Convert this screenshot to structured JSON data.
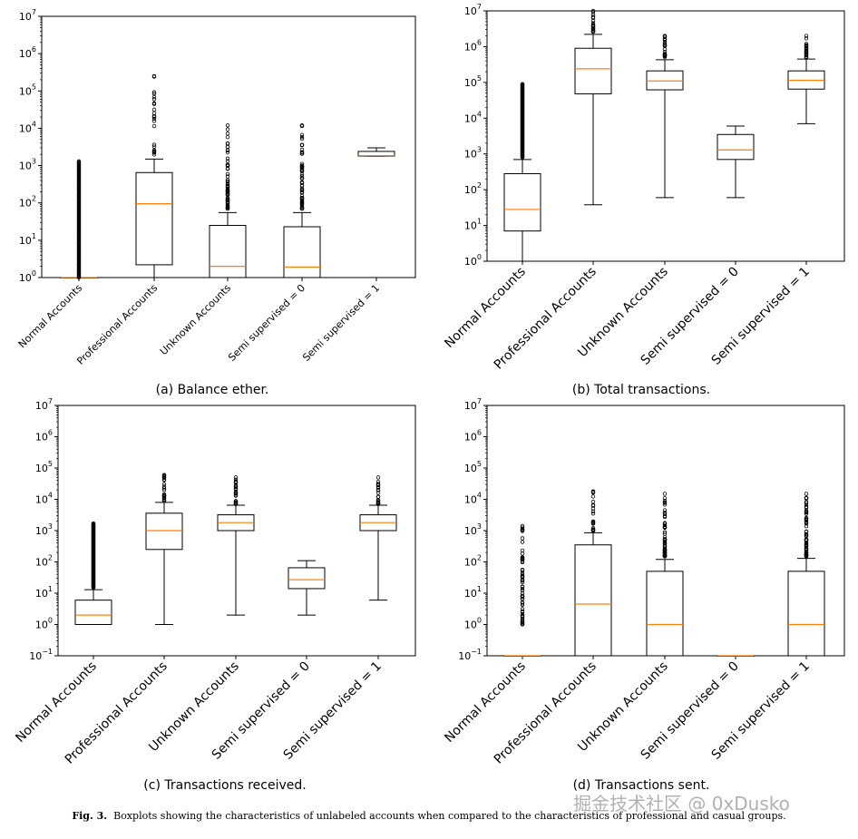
{
  "figure": {
    "caption_label": "Fig. 3.",
    "caption_text": "Boxplots showing the characteristics of unlabeled accounts when compared to the characteristics of professional and casual groups.",
    "watermark": "掘金技术社区 @ 0xDusko"
  },
  "colors": {
    "box": "#000000",
    "median": "#ff7f0e",
    "flier": "#000000",
    "background": "#ffffff"
  },
  "chart_data": [
    {
      "type": "boxplot",
      "panel": "a",
      "subcaption": "(a) Balance ether.",
      "yscale": "log",
      "ylim": [
        1,
        10000000
      ],
      "ytick_labels": [
        {
          "base": "10",
          "exp": "0"
        },
        {
          "base": "10",
          "exp": "1"
        },
        {
          "base": "10",
          "exp": "2"
        },
        {
          "base": "10",
          "exp": "3"
        },
        {
          "base": "10",
          "exp": "4"
        },
        {
          "base": "10",
          "exp": "5"
        },
        {
          "base": "10",
          "exp": "6"
        },
        {
          "base": "10",
          "exp": "7"
        }
      ],
      "categories": [
        "Normal Accounts",
        "Professional Accounts",
        "Unknown Accounts",
        "Semi supervised = 0",
        "Semi supervised = 1"
      ],
      "boxes": [
        {
          "q1": 1,
          "median": 1,
          "q3": 1,
          "whisker_low": 1,
          "whisker_high": 1,
          "flier_range": [
            1,
            1300
          ],
          "flier_style": "dense"
        },
        {
          "q1": 2.2,
          "median": 95,
          "q3": 650,
          "whisker_low": 1,
          "whisker_high": 1500,
          "flier_range": [
            1800,
            250000
          ],
          "flier_style": "sparse"
        },
        {
          "q1": 1,
          "median": 2,
          "q3": 25,
          "whisker_low": 1,
          "whisker_high": 55,
          "flier_range": [
            70,
            12000
          ],
          "flier_style": "medium"
        },
        {
          "q1": 1,
          "median": 1.9,
          "q3": 23,
          "whisker_low": 1,
          "whisker_high": 55,
          "flier_range": [
            70,
            12000
          ],
          "flier_style": "medium"
        },
        {
          "q1": 1800,
          "median": 1850,
          "q3": 2400,
          "whisker_low": 1800,
          "whisker_high": 3000,
          "flier_range": null,
          "flier_style": "none"
        }
      ]
    },
    {
      "type": "boxplot",
      "panel": "b",
      "subcaption": "(b) Total transactions.",
      "yscale": "log",
      "ylim": [
        1,
        10000000
      ],
      "ytick_labels": [
        {
          "base": "10",
          "exp": "0"
        },
        {
          "base": "10",
          "exp": "1"
        },
        {
          "base": "10",
          "exp": "2"
        },
        {
          "base": "10",
          "exp": "3"
        },
        {
          "base": "10",
          "exp": "4"
        },
        {
          "base": "10",
          "exp": "5"
        },
        {
          "base": "10",
          "exp": "6"
        },
        {
          "base": "10",
          "exp": "7"
        }
      ],
      "categories": [
        "Normal Accounts",
        "Professional Accounts",
        "Unknown Accounts",
        "Semi supervised = 0",
        "Semi supervised = 1"
      ],
      "boxes": [
        {
          "q1": 7,
          "median": 28,
          "q3": 280,
          "whisker_low": 1,
          "whisker_high": 700,
          "flier_range": [
            800,
            90000
          ],
          "flier_style": "dense"
        },
        {
          "q1": 48000,
          "median": 240000,
          "q3": 900000,
          "whisker_low": 38,
          "whisker_high": 2200000,
          "flier_range": [
            2600000,
            10000000
          ],
          "flier_style": "sparse"
        },
        {
          "q1": 62000,
          "median": 110000,
          "q3": 210000,
          "whisker_low": 60,
          "whisker_high": 430000,
          "flier_range": [
            500000,
            2000000
          ],
          "flier_style": "sparse"
        },
        {
          "q1": 700,
          "median": 1300,
          "q3": 3500,
          "whisker_low": 60,
          "whisker_high": 6000,
          "flier_range": null,
          "flier_style": "none"
        },
        {
          "q1": 65000,
          "median": 115000,
          "q3": 210000,
          "whisker_low": 7000,
          "whisker_high": 450000,
          "flier_range": [
            500000,
            2000000
          ],
          "flier_style": "sparse"
        }
      ]
    },
    {
      "type": "boxplot",
      "panel": "c",
      "subcaption": "(c) Transactions received.",
      "yscale": "log",
      "ylim": [
        0.1,
        10000000
      ],
      "ytick_labels": [
        {
          "base": "10",
          "exp": "−1"
        },
        {
          "base": "10",
          "exp": "0"
        },
        {
          "base": "10",
          "exp": "1"
        },
        {
          "base": "10",
          "exp": "2"
        },
        {
          "base": "10",
          "exp": "3"
        },
        {
          "base": "10",
          "exp": "4"
        },
        {
          "base": "10",
          "exp": "5"
        },
        {
          "base": "10",
          "exp": "6"
        },
        {
          "base": "10",
          "exp": "7"
        }
      ],
      "categories": [
        "Normal Accounts",
        "Professional Accounts",
        "Unknown Accounts",
        "Semi supervised = 0",
        "Semi supervised = 1"
      ],
      "boxes": [
        {
          "q1": 1,
          "median": 2,
          "q3": 6,
          "whisker_low": 1,
          "whisker_high": 13,
          "flier_range": [
            15,
            1700
          ],
          "flier_style": "dense"
        },
        {
          "q1": 250,
          "median": 1000,
          "q3": 3600,
          "whisker_low": 1,
          "whisker_high": 8000,
          "flier_range": [
            9000,
            60000
          ],
          "flier_style": "sparse"
        },
        {
          "q1": 1000,
          "median": 1800,
          "q3": 3200,
          "whisker_low": 2,
          "whisker_high": 6500,
          "flier_range": [
            7000,
            50000
          ],
          "flier_style": "sparse"
        },
        {
          "q1": 14,
          "median": 27,
          "q3": 65,
          "whisker_low": 2,
          "whisker_high": 110,
          "flier_range": null,
          "flier_style": "none"
        },
        {
          "q1": 1000,
          "median": 1800,
          "q3": 3200,
          "whisker_low": 6,
          "whisker_high": 6500,
          "flier_range": [
            7000,
            50000
          ],
          "flier_style": "sparse"
        }
      ]
    },
    {
      "type": "boxplot",
      "panel": "d",
      "subcaption": "(d) Transactions sent.",
      "yscale": "log",
      "ylim": [
        0.1,
        10000000
      ],
      "ytick_labels": [
        {
          "base": "10",
          "exp": "−1"
        },
        {
          "base": "10",
          "exp": "0"
        },
        {
          "base": "10",
          "exp": "1"
        },
        {
          "base": "10",
          "exp": "2"
        },
        {
          "base": "10",
          "exp": "3"
        },
        {
          "base": "10",
          "exp": "4"
        },
        {
          "base": "10",
          "exp": "5"
        },
        {
          "base": "10",
          "exp": "6"
        },
        {
          "base": "10",
          "exp": "7"
        }
      ],
      "categories": [
        "Normal Accounts",
        "Professional Accounts",
        "Unknown Accounts",
        "Semi supervised = 0",
        "Semi supervised = 1"
      ],
      "boxes": [
        {
          "q1": 0.1,
          "median": 0.1,
          "q3": 0.1,
          "whisker_low": 0.1,
          "whisker_high": 0.1,
          "flier_range": [
            1,
            1400
          ],
          "flier_style": "medium"
        },
        {
          "q1": 0.1,
          "median": 4.5,
          "q3": 350,
          "whisker_low": 0.1,
          "whisker_high": 850,
          "flier_range": [
            1000,
            18000
          ],
          "flier_style": "sparse"
        },
        {
          "q1": 0.1,
          "median": 1,
          "q3": 50,
          "whisker_low": 0.1,
          "whisker_high": 120,
          "flier_range": [
            150,
            15000
          ],
          "flier_style": "medium"
        },
        {
          "q1": 0.1,
          "median": 0.1,
          "q3": 0.1,
          "whisker_low": 0.1,
          "whisker_high": 0.1,
          "flier_range": null,
          "flier_style": "none"
        },
        {
          "q1": 0.1,
          "median": 1,
          "q3": 50,
          "whisker_low": 0.1,
          "whisker_high": 130,
          "flier_range": [
            150,
            15000
          ],
          "flier_style": "medium"
        }
      ]
    }
  ]
}
